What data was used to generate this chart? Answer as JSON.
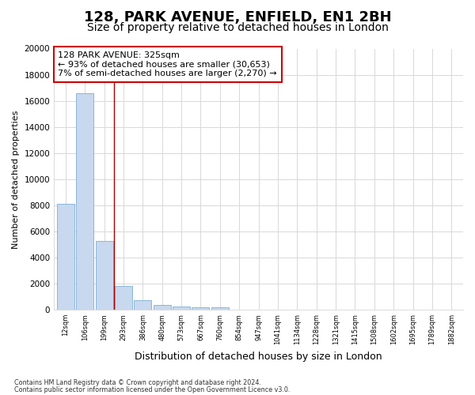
{
  "title": "128, PARK AVENUE, ENFIELD, EN1 2BH",
  "subtitle": "Size of property relative to detached houses in London",
  "xlabel": "Distribution of detached houses by size in London",
  "ylabel": "Number of detached properties",
  "annotation_title": "128 PARK AVENUE: 325sqm",
  "annotation_line1": "← 93% of detached houses are smaller (30,653)",
  "annotation_line2": "7% of semi-detached houses are larger (2,270) →",
  "footer1": "Contains HM Land Registry data © Crown copyright and database right 2024.",
  "footer2": "Contains public sector information licensed under the Open Government Licence v3.0.",
  "bar_color": "#c8d8ee",
  "bar_edge_color": "#7bafd4",
  "vline_color": "#aa0000",
  "vline_x": 2.5,
  "categories": [
    "12sqm",
    "106sqm",
    "199sqm",
    "293sqm",
    "386sqm",
    "480sqm",
    "573sqm",
    "667sqm",
    "760sqm",
    "854sqm",
    "947sqm",
    "1041sqm",
    "1134sqm",
    "1228sqm",
    "1321sqm",
    "1415sqm",
    "1508sqm",
    "1602sqm",
    "1695sqm",
    "1789sqm",
    "1882sqm"
  ],
  "values": [
    8100,
    16600,
    5300,
    1850,
    750,
    350,
    270,
    220,
    200,
    0,
    0,
    0,
    0,
    0,
    0,
    0,
    0,
    0,
    0,
    0,
    0
  ],
  "ylim": [
    0,
    20000
  ],
  "yticks": [
    0,
    2000,
    4000,
    6000,
    8000,
    10000,
    12000,
    14000,
    16000,
    18000,
    20000
  ],
  "background_color": "#ffffff",
  "grid_color": "#d8d8d8",
  "annotation_box_color": "#ffffff",
  "annotation_box_edge": "#cc0000",
  "title_fontsize": 13,
  "subtitle_fontsize": 10
}
